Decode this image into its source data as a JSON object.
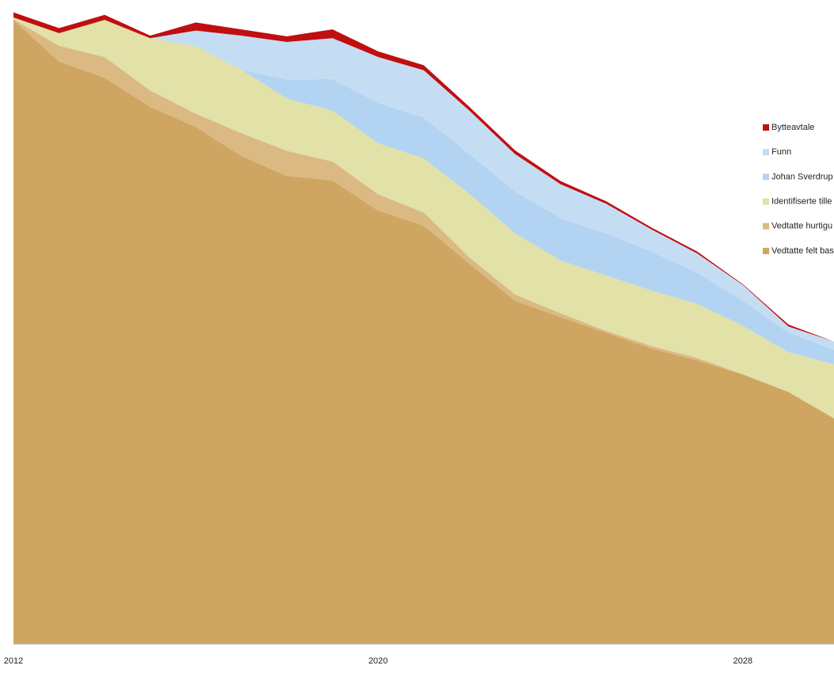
{
  "chart_data": {
    "type": "stacked-area",
    "x": [
      2012,
      2013,
      2014,
      2015,
      2016,
      2017,
      2018,
      2019,
      2020,
      2021,
      2022,
      2023,
      2024,
      2025,
      2026,
      2027,
      2028,
      2029,
      2030
    ],
    "xlim": [
      2012,
      2030
    ],
    "xticks": [
      2012,
      2020,
      2028
    ],
    "ylim": [
      0,
      100
    ],
    "legend": "right",
    "series": [
      {
        "name": "Vedtatte felt bas",
        "color": "#cfa661",
        "values": [
          99.1,
          92.5,
          89.9,
          85.3,
          82.1,
          77.5,
          74.3,
          73.6,
          68.8,
          66.4,
          60.4,
          54.5,
          51.9,
          49.4,
          46.9,
          45.0,
          42.8,
          40.0,
          35.8
        ]
      },
      {
        "name": "Vedtatte hurtigu",
        "color": "#dbb983",
        "values": [
          0.1,
          2.5,
          3.3,
          2.6,
          2.1,
          3.6,
          4.0,
          3.0,
          2.6,
          2.1,
          1.0,
          1.0,
          0.6,
          0.3,
          0.4,
          0.4,
          0,
          0,
          0
        ]
      },
      {
        "name": "Identifiserte tille",
        "color": "#e1e1a8",
        "values": [
          0.3,
          2.0,
          5.9,
          8.3,
          10.7,
          10.1,
          8.3,
          8.1,
          8.1,
          8.6,
          10.1,
          9.7,
          8.4,
          8.8,
          8.8,
          8.6,
          7.7,
          6.3,
          8.6
        ]
      },
      {
        "name": "Johan Sverdrup",
        "color": "#b3d3f2",
        "values": [
          0,
          0,
          0,
          0,
          0,
          0,
          3.0,
          5.0,
          6.4,
          6.5,
          6.3,
          6.7,
          6.7,
          6.7,
          6.2,
          4.9,
          4.0,
          3.1,
          2.3
        ]
      },
      {
        "name": "Funn",
        "color": "#c5ddf3",
        "values": [
          0,
          0,
          0,
          0,
          2.5,
          5.4,
          6.0,
          6.5,
          7.3,
          7.5,
          6.9,
          5.9,
          5.4,
          4.7,
          3.5,
          3.1,
          2.5,
          1.0,
          1.3
        ]
      },
      {
        "name": "Bytteavtale",
        "color": "#c00f10",
        "values": [
          0.8,
          0.8,
          0.8,
          0.4,
          1.3,
          1.0,
          0.9,
          1.4,
          0.9,
          0.8,
          0.6,
          0.6,
          0.5,
          0.4,
          0.3,
          0.3,
          0.1,
          0.3,
          0
        ]
      }
    ]
  }
}
